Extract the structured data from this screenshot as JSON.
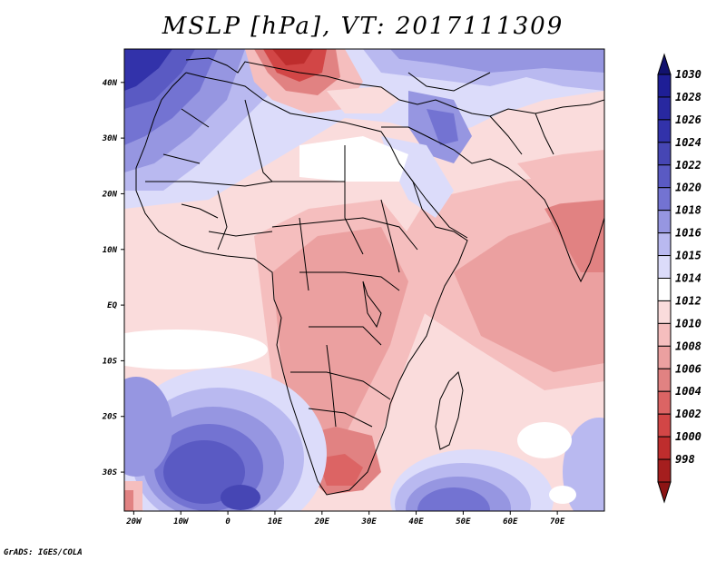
{
  "title": "MSLP [hPa], VT: 2017111309",
  "credit": "GrADS: IGES/COLA",
  "map": {
    "lat_range": [
      -37,
      46
    ],
    "lon_range": [
      -22,
      80
    ],
    "lat_ticks": [
      {
        "value": 40,
        "label": "40N"
      },
      {
        "value": 30,
        "label": "30N"
      },
      {
        "value": 20,
        "label": "20N"
      },
      {
        "value": 10,
        "label": "10N"
      },
      {
        "value": 0,
        "label": "EQ"
      },
      {
        "value": -10,
        "label": "10S"
      },
      {
        "value": -20,
        "label": "20S"
      },
      {
        "value": -30,
        "label": "30S"
      }
    ],
    "lon_ticks": [
      {
        "value": -20,
        "label": "20W"
      },
      {
        "value": -10,
        "label": "10W"
      },
      {
        "value": 0,
        "label": "0"
      },
      {
        "value": 10,
        "label": "10E"
      },
      {
        "value": 20,
        "label": "20E"
      },
      {
        "value": 30,
        "label": "30E"
      },
      {
        "value": 40,
        "label": "40E"
      },
      {
        "value": 50,
        "label": "50E"
      },
      {
        "value": 60,
        "label": "60E"
      },
      {
        "value": 70,
        "label": "70E"
      }
    ]
  },
  "colorbar": [
    {
      "label": "1030",
      "color": "#1e1e96"
    },
    {
      "label": "1028",
      "color": "#2828a0"
    },
    {
      "label": "1026",
      "color": "#3232aa"
    },
    {
      "label": "1024",
      "color": "#4646b4"
    },
    {
      "label": "1022",
      "color": "#5a5ac3"
    },
    {
      "label": "1020",
      "color": "#7373d2"
    },
    {
      "label": "1018",
      "color": "#9696e1"
    },
    {
      "label": "1016",
      "color": "#b9b9f0"
    },
    {
      "label": "1015",
      "color": "#dcdcfa"
    },
    {
      "label": "1014",
      "color": "#ffffff"
    },
    {
      "label": "1012",
      "color": "#fadcdc"
    },
    {
      "label": "1010",
      "color": "#f5bebe"
    },
    {
      "label": "1008",
      "color": "#eba0a0"
    },
    {
      "label": "1006",
      "color": "#e18282"
    },
    {
      "label": "1004",
      "color": "#dc6464"
    },
    {
      "label": "1002",
      "color": "#d24646"
    },
    {
      "label": "1000",
      "color": "#be2d2d"
    },
    {
      "label": "998",
      "color": "#a51e1e"
    }
  ],
  "colorbar_top_color": "#12126e",
  "colorbar_bottom_color": "#8c1414"
}
